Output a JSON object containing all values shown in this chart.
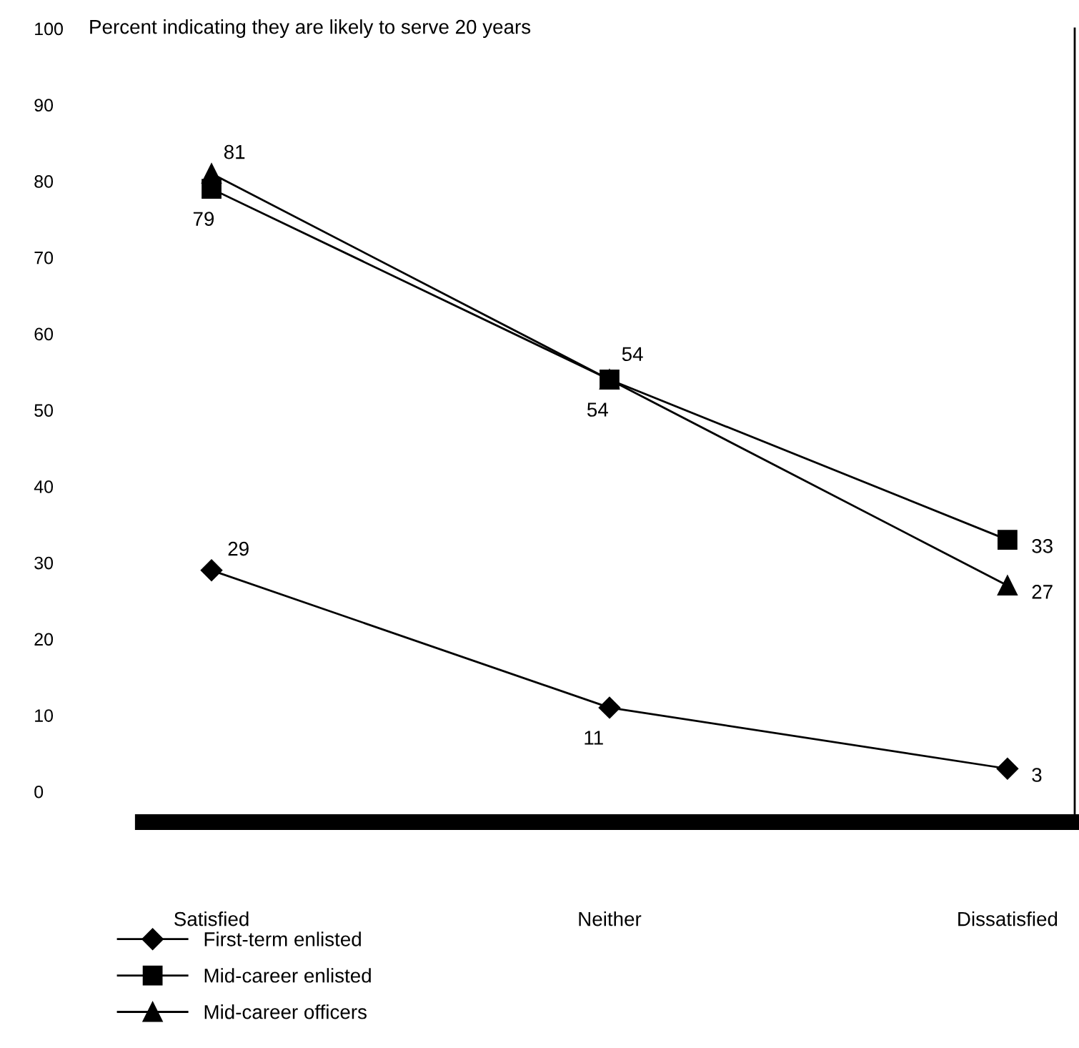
{
  "chart_data": {
    "type": "line",
    "ylabel": "Percent indicating they are likely to serve 20 years",
    "categories": [
      "Satisfied",
      "Neither",
      "Dissatisfied"
    ],
    "series": [
      {
        "name": "First-term enlisted",
        "color": "#000000",
        "marker": "diamond",
        "values": [
          29,
          11,
          3
        ]
      },
      {
        "name": "Mid-career enlisted",
        "color": "#000000",
        "marker": "square",
        "values": [
          79,
          54,
          33
        ]
      },
      {
        "name": "Mid-career officers",
        "color": "#000000",
        "marker": "triangle",
        "values": [
          81,
          54,
          27
        ]
      }
    ],
    "ylim": [
      -4,
      100
    ],
    "yticks": [
      0,
      10,
      20,
      30,
      40,
      50,
      60,
      70,
      80,
      90,
      100
    ],
    "data_labels": true,
    "grid": false,
    "legend": "bottom left",
    "line_style": "solid"
  }
}
